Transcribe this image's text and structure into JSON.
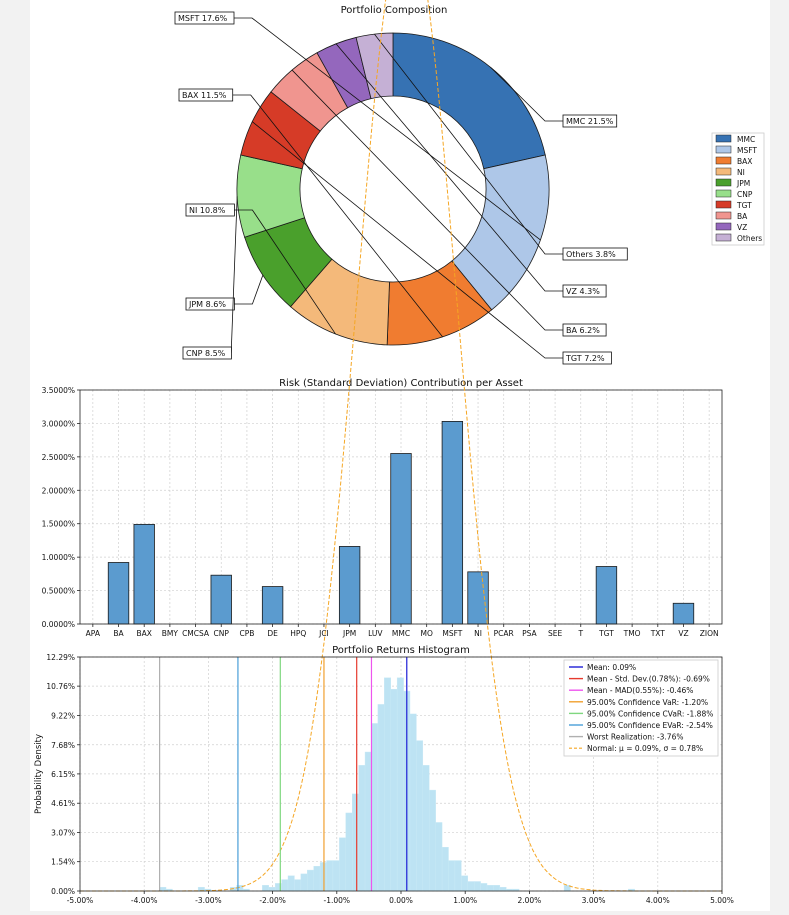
{
  "chart_data": [
    {
      "type": "pie",
      "title": "Portfolio Composition",
      "labels": [
        "MMC",
        "MSFT",
        "BAX",
        "NI",
        "JPM",
        "CNP",
        "TGT",
        "BA",
        "VZ",
        "Others"
      ],
      "values": [
        21.5,
        17.6,
        11.5,
        10.8,
        8.6,
        8.5,
        7.2,
        6.2,
        4.3,
        3.8
      ],
      "annotations": [
        "MSFT 17.6%",
        "MMC 21.5%",
        "BAX 11.5%",
        "NI 10.8%",
        "JPM 8.6%",
        "CNP 8.5%",
        "Others 3.8%",
        "VZ 4.3%",
        "BA 6.2%",
        "TGT 7.2%"
      ],
      "colors": [
        "#3672b3",
        "#aec7e8",
        "#f07c30",
        "#f4b97a",
        "#4aa02c",
        "#98df8a",
        "#d63b27",
        "#f0958f",
        "#9467bd",
        "#c5b0d5"
      ],
      "legend": [
        "MMC",
        "MSFT",
        "BAX",
        "NI",
        "JPM",
        "CNP",
        "TGT",
        "BA",
        "VZ",
        "Others"
      ],
      "legend_position": "right"
    },
    {
      "type": "bar",
      "title": "Risk (Standard Deviation) Contribution per Asset",
      "categories": [
        "APA",
        "BA",
        "BAX",
        "BMY",
        "CMCSA",
        "CNP",
        "CPB",
        "DE",
        "HPQ",
        "JCI",
        "JPM",
        "LUV",
        "MMC",
        "MO",
        "MSFT",
        "NI",
        "PCAR",
        "PSA",
        "SEE",
        "T",
        "TGT",
        "TMO",
        "TXT",
        "VZ",
        "ZION"
      ],
      "values": [
        0,
        0.92,
        1.49,
        0,
        0,
        0.73,
        0,
        0.56,
        0,
        0,
        1.16,
        0,
        2.55,
        0,
        3.03,
        0.78,
        0,
        0,
        0,
        0,
        0.86,
        0,
        0,
        0.31,
        0
      ],
      "ylim": [
        0,
        3.5
      ],
      "yticks": [
        "0.0000%",
        "0.5000%",
        "1.0000%",
        "1.5000%",
        "2.0000%",
        "2.5000%",
        "3.0000%",
        "3.5000%"
      ],
      "color": "#5b9bcf",
      "grid": true
    },
    {
      "type": "histogram",
      "title": "Portfolio Returns Histogram",
      "ylabel": "Probability Density",
      "xlim": [
        -5,
        5
      ],
      "ylim": [
        0,
        12.29
      ],
      "xticks": [
        "-5.00%",
        "-4.00%",
        "-3.00%",
        "-2.00%",
        "-1.00%",
        "0.00%",
        "1.00%",
        "2.00%",
        "3.00%",
        "4.00%",
        "5.00%"
      ],
      "yticks": [
        "0.00%",
        "1.54%",
        "3.07%",
        "4.61%",
        "6.15%",
        "7.68%",
        "9.22%",
        "10.76%",
        "12.29%"
      ],
      "bin_start": -3.76,
      "bin_width": 0.1,
      "densities": [
        0.2,
        0.1,
        0,
        0,
        0,
        0,
        0.2,
        0.1,
        0,
        0,
        0,
        0.2,
        0.3,
        0.1,
        0,
        0,
        0.3,
        0.2,
        0.4,
        0.6,
        0.8,
        0.6,
        0.9,
        1.1,
        1.3,
        1.5,
        1.6,
        1.6,
        2.8,
        4.1,
        5.1,
        6.6,
        7.3,
        8.8,
        9.8,
        11.2,
        10.6,
        11.2,
        10.5,
        9.3,
        7.9,
        6.6,
        5.3,
        3.6,
        2.3,
        1.6,
        1.6,
        0.8,
        0.5,
        0.5,
        0.4,
        0.3,
        0.3,
        0.2,
        0.1,
        0.1,
        0,
        0,
        0,
        0,
        0,
        0,
        0,
        0.3,
        0,
        0,
        0,
        0,
        0,
        0,
        0,
        0,
        0,
        0.1
      ],
      "hist_color": "#bde3f3",
      "normal": {
        "mean": 0.09,
        "std": 0.78,
        "label": "Normal: μ = 0.09%, σ = 0.78%",
        "color": "#f5a623"
      },
      "lines": [
        {
          "label": "Mean: 0.09%",
          "value": 0.09,
          "color": "#1f1fd6"
        },
        {
          "label": "Mean - Std. Dev.(0.78%): -0.69%",
          "value": -0.69,
          "color": "#e63a2e"
        },
        {
          "label": "Mean - MAD(0.55%): -0.46%",
          "value": -0.46,
          "color": "#ee55ee"
        },
        {
          "label": "95.00% Confidence VaR: -1.20%",
          "value": -1.2,
          "color": "#f0a030"
        },
        {
          "label": "95.00% Confidence CVaR: -1.88%",
          "value": -1.88,
          "color": "#7fd77f"
        },
        {
          "label": "95.00% Confidence EVaR: -2.54%",
          "value": -2.54,
          "color": "#4a9fd8"
        },
        {
          "label": "Worst Realization: -3.76%",
          "value": -3.76,
          "color": "#b0b0b0"
        }
      ],
      "grid": true,
      "legend_position": "top-right"
    }
  ]
}
